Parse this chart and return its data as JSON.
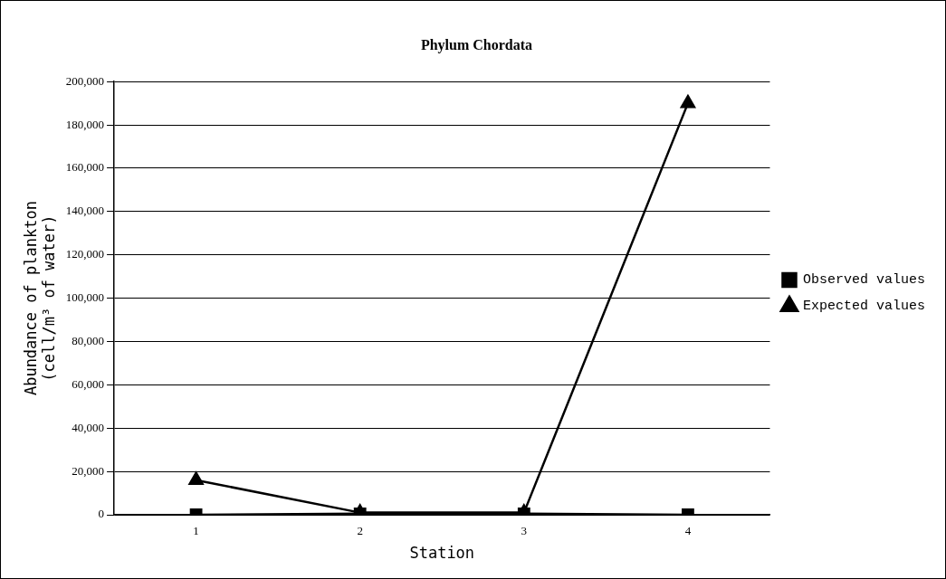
{
  "chart_data": {
    "type": "line",
    "title": "Phylum Chordata",
    "xlabel": "Station",
    "ylabel": "Abundance of plankton\n(cell/m³ of water)",
    "categories": [
      "1",
      "2",
      "3",
      "4"
    ],
    "series": [
      {
        "name": "Observed values",
        "color": "#000000",
        "values": [
          0,
          500,
          500,
          0
        ],
        "marker": "square"
      },
      {
        "name": "Expected values",
        "color": "#000000",
        "values": [
          16000,
          1000,
          1000,
          190000
        ],
        "marker": "triangle"
      }
    ],
    "ylim": [
      0,
      200000
    ],
    "yticks": [
      0,
      {
        "value": 20000,
        "label": "20,000"
      },
      {
        "value": 40000,
        "label": "40,000"
      },
      {
        "value": 60000,
        "label": "60,000"
      },
      {
        "value": 80000,
        "label": "80,000"
      },
      {
        "value": 100000,
        "label": "100,000"
      },
      {
        "value": 120000,
        "label": "120,000"
      },
      {
        "value": 140000,
        "label": "140,000"
      },
      {
        "value": 160000,
        "label": "160,000"
      },
      {
        "value": 180000,
        "label": "180,000"
      },
      {
        "value": 200000,
        "label": "200,000"
      }
    ],
    "grid": "y",
    "legend": "right",
    "line_style": "solid"
  }
}
